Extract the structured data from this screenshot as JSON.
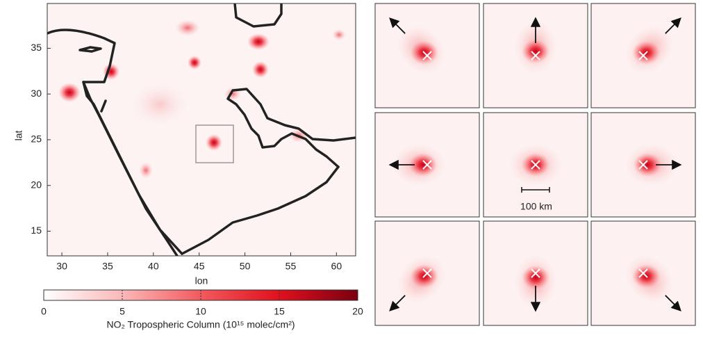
{
  "chart_data": {
    "type": "map",
    "xlabel": "lon",
    "ylabel": "lat",
    "xlim": [
      28.4,
      62.1
    ],
    "ylim": [
      12.3,
      39.9
    ],
    "xticks": [
      30,
      35,
      40,
      45,
      50,
      55,
      60
    ],
    "yticks": [
      15,
      20,
      25,
      30,
      35
    ],
    "colorbar_label": "NO₂ Tropospheric Column (10¹⁵ molec/cm²)",
    "clim": [
      0,
      20
    ],
    "cticks": [
      0,
      5,
      10,
      15,
      20
    ],
    "scale_label": "100 km"
  }
}
